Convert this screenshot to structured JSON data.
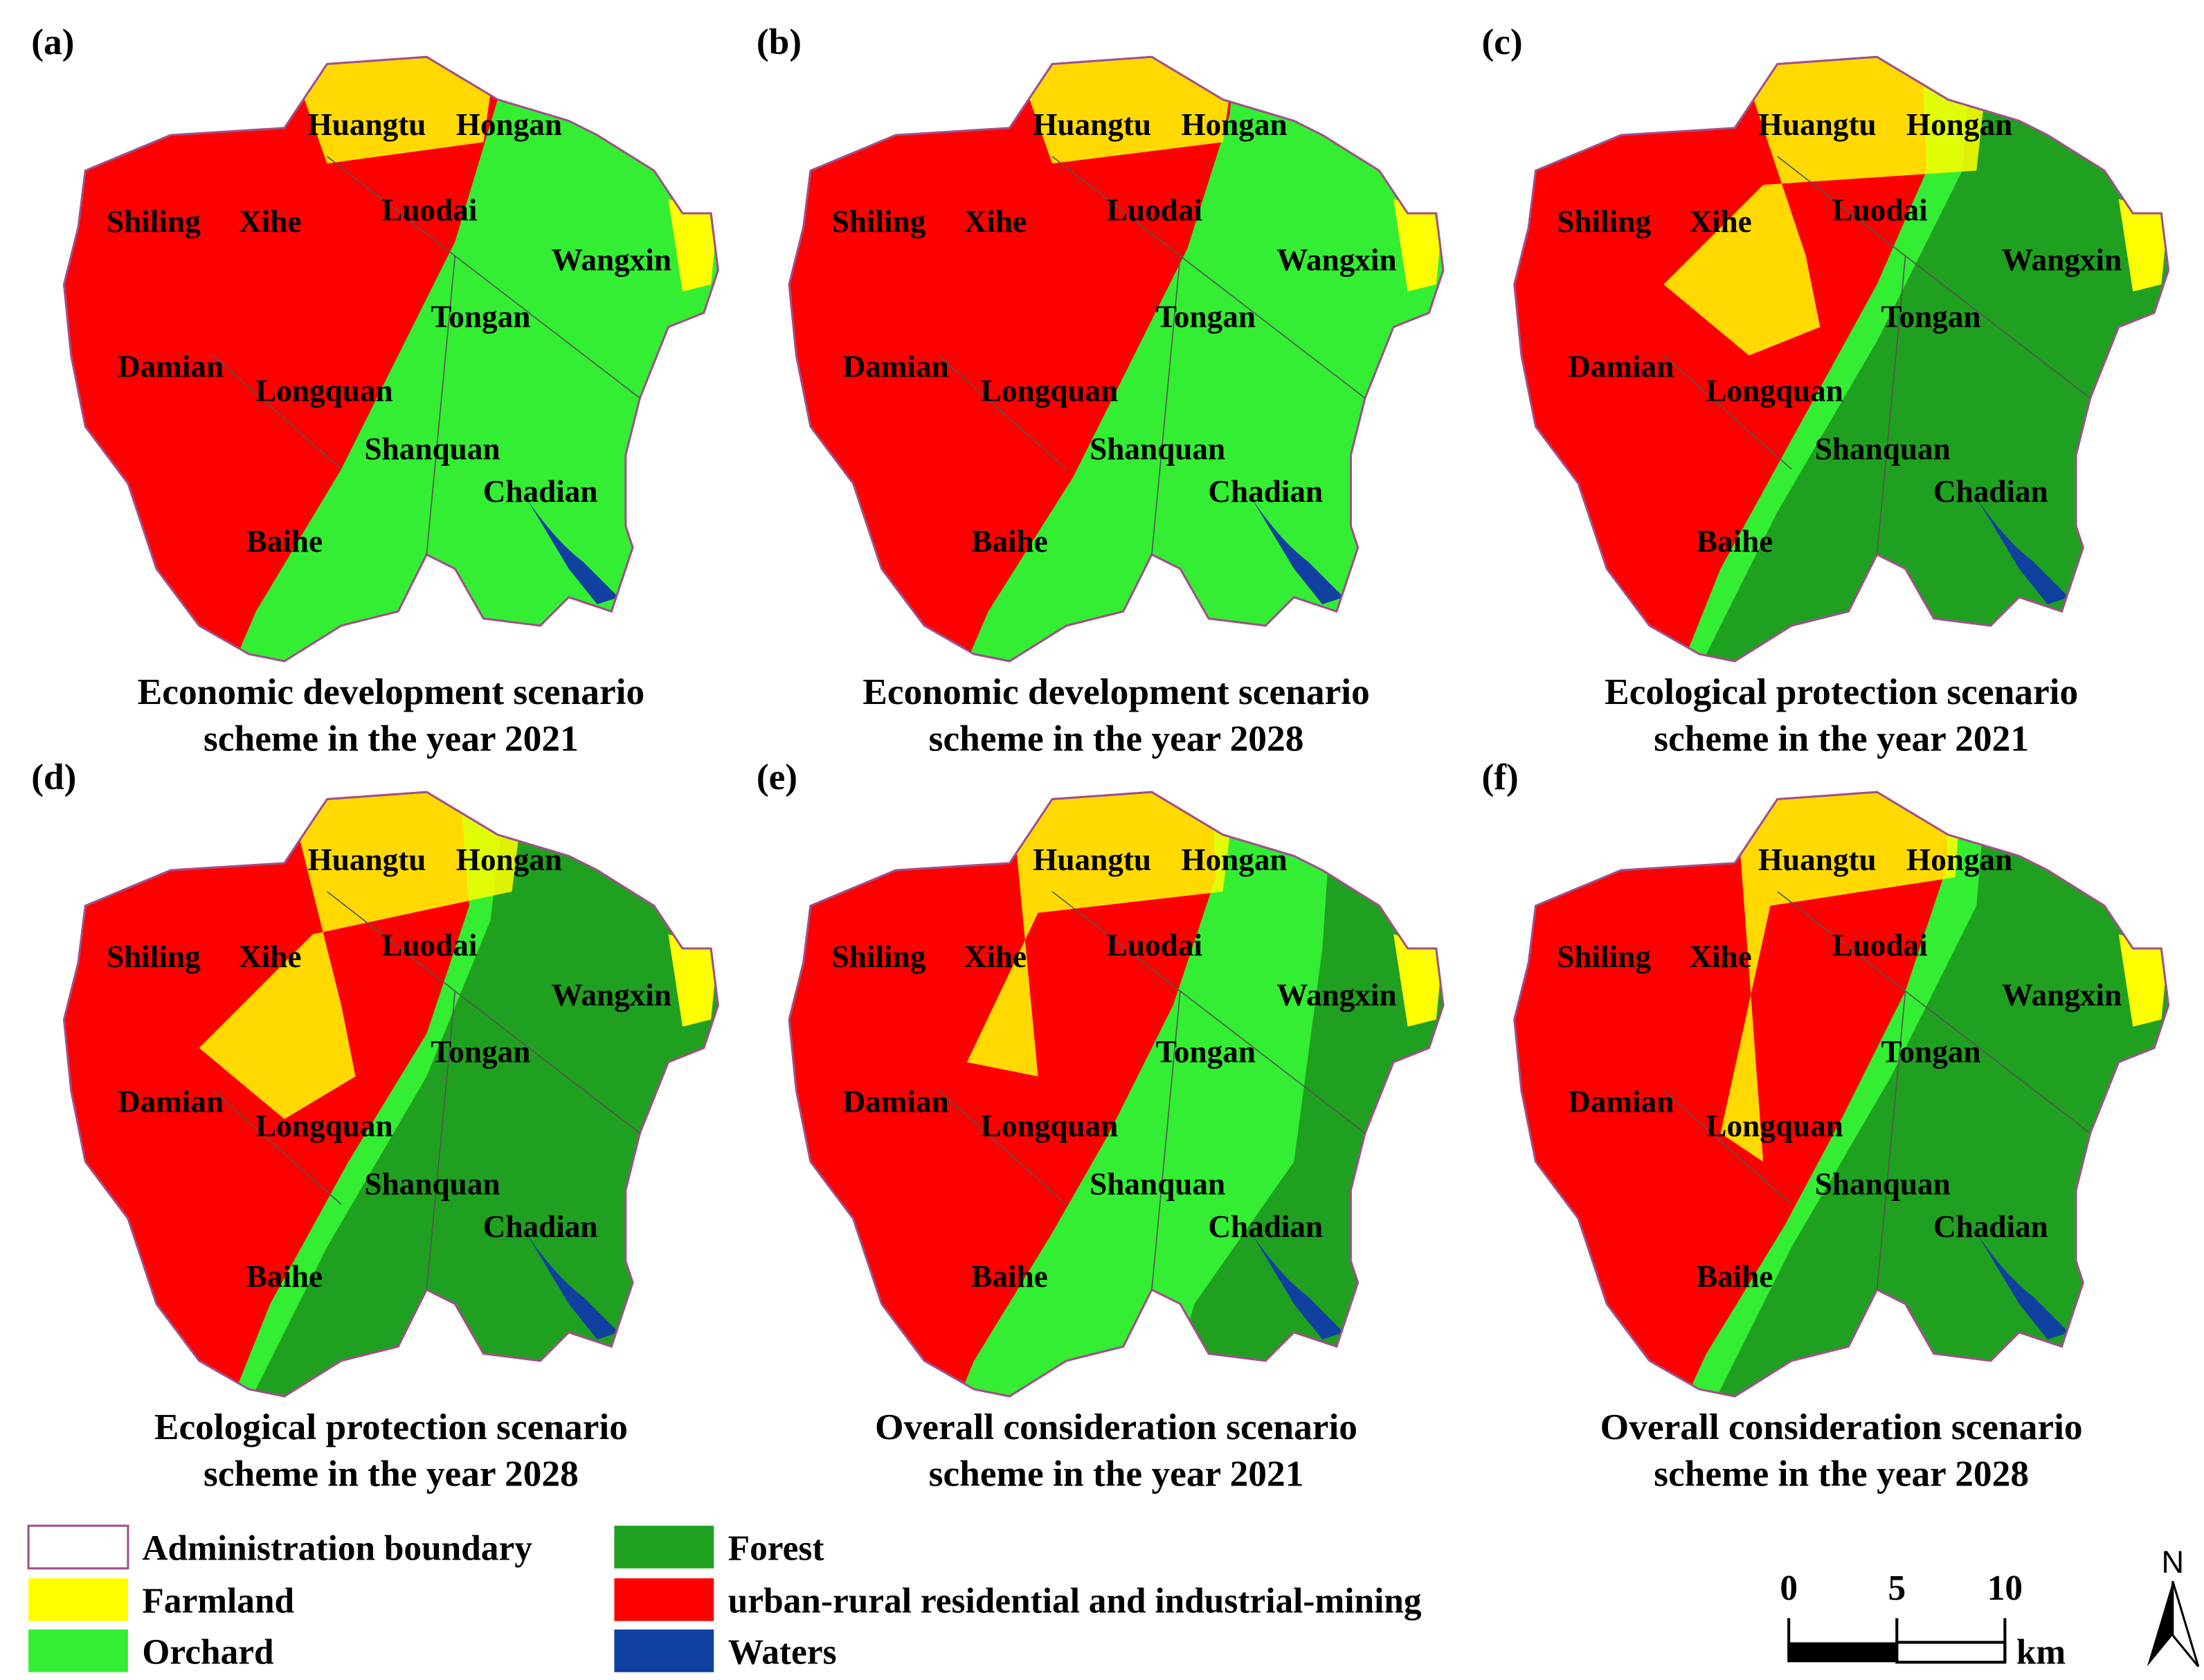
{
  "panels": [
    {
      "label": "(a)",
      "caption": [
        "Economic development scenario",
        "scheme in the year 2021"
      ]
    },
    {
      "label": "(b)",
      "caption": [
        "Economic development scenario",
        "scheme in the year 2028"
      ]
    },
    {
      "label": "(c)",
      "caption": [
        "Ecological protection scenario",
        "scheme in the year 2021"
      ]
    },
    {
      "label": "(d)",
      "caption": [
        "Ecological protection scenario",
        "scheme in the year 2028"
      ]
    },
    {
      "label": "(e)",
      "caption": [
        "Overall consideration scenario",
        "scheme in the year 2021"
      ]
    },
    {
      "label": "(f)",
      "caption": [
        "Overall consideration scenario",
        "scheme in the year 2028"
      ]
    }
  ],
  "place_names": [
    "Huangtu",
    "Hongan",
    "Shiling",
    "Xihe",
    "Luodai",
    "Wangxin",
    "Tongan",
    "Damian",
    "Longquan",
    "Shanquan",
    "Chadian",
    "Baihe"
  ],
  "legend": [
    {
      "label": "Administration boundary",
      "color": "#a0508a"
    },
    {
      "label": "Farmland",
      "color": "#ffff00"
    },
    {
      "label": "Orchard",
      "color": "#33ee33"
    },
    {
      "label": "Forest",
      "color": "#20a020"
    },
    {
      "label": "urban-rural residential and industrial-mining",
      "color": "#ff0000"
    },
    {
      "label": "Waters",
      "color": "#1040a0"
    }
  ],
  "scale_bar": {
    "ticks": [
      "0",
      "5",
      "10"
    ],
    "unit": "km"
  },
  "north_arrow": "N"
}
